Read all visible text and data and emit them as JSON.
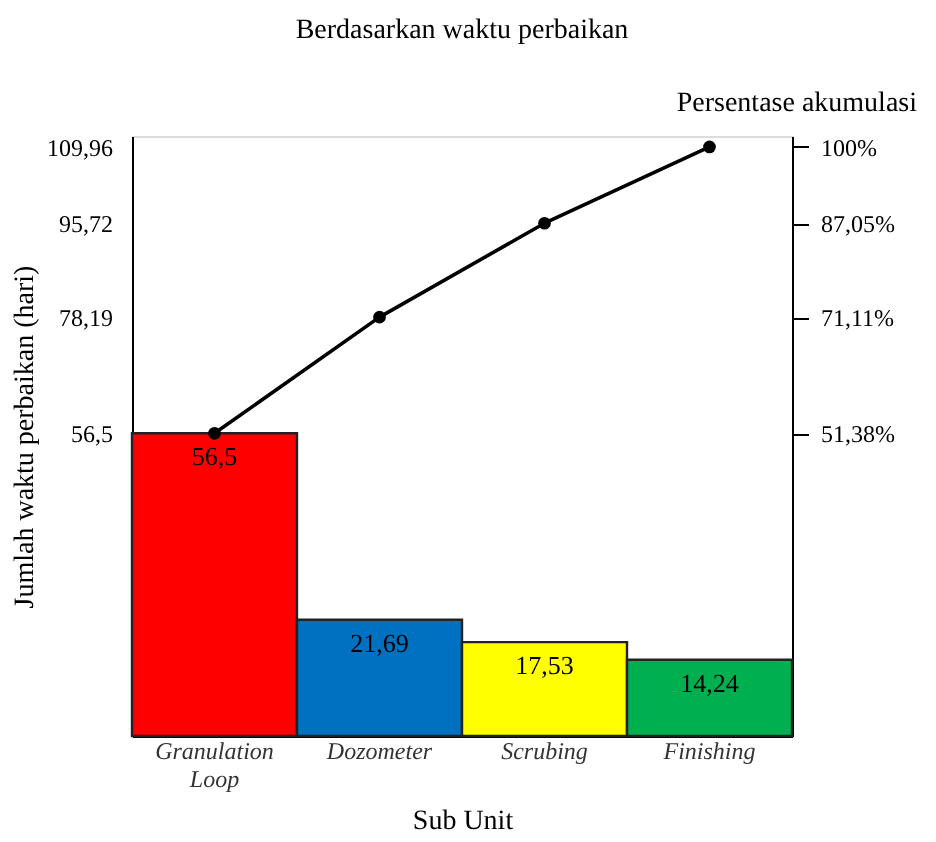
{
  "chart_data": {
    "type": "bar",
    "title": "Berdasarkan waktu perbaikan",
    "xlabel": "Sub Unit",
    "ylabel": "Jumlah waktu perbaikan (hari)",
    "y2label": "Persentase akumulasi",
    "categories": [
      "Granulation Loop",
      "Dozometer",
      "Scrubing",
      "Finishing"
    ],
    "series": [
      {
        "colors": [
          "#ff0000",
          "#0070c0",
          "#ffff00",
          "#00b050"
        ],
        "values": [
          56.5,
          21.69,
          17.53,
          14.24
        ],
        "value_labels": [
          "56,5",
          "21,69",
          "17,53",
          "14,24"
        ]
      },
      {
        "type": "line",
        "color": "#000000",
        "marker": "circle",
        "line_style": "solid",
        "values": [
          56.5,
          78.19,
          95.72,
          109.96
        ]
      }
    ],
    "ylim": [
      0,
      112
    ],
    "yticks": [
      {
        "value": 56.5,
        "label": "56,5"
      },
      {
        "value": 78.19,
        "label": "78,19"
      },
      {
        "value": 95.72,
        "label": "95,72"
      },
      {
        "value": 109.96,
        "label": "109,96"
      }
    ],
    "y2lim": [
      0,
      101.85
    ],
    "y2ticks": [
      {
        "value": 51.38,
        "label": "51,38%"
      },
      {
        "value": 71.11,
        "label": "71,11%"
      },
      {
        "value": 87.05,
        "label": "87,05%"
      },
      {
        "value": 100,
        "label": "100%"
      }
    ],
    "grid": false,
    "legend": false
  }
}
